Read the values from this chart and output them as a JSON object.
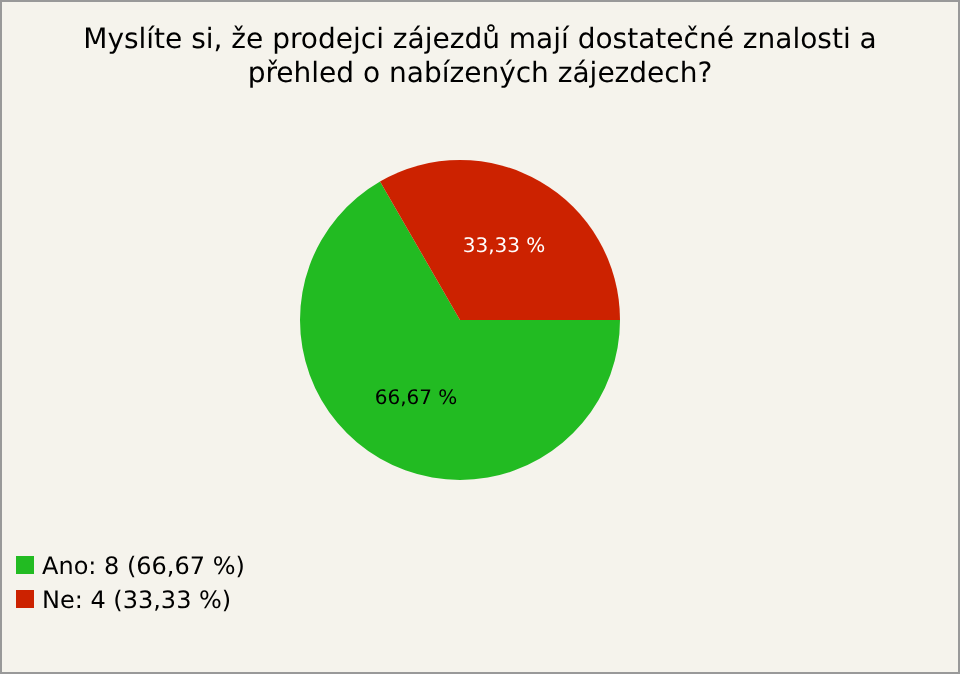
{
  "chart_data": {
    "type": "pie",
    "title": "Myslíte si, že prodejci zájezdů mají dostatečné znalosti a přehled o nabízených zájezdech?",
    "categories": [
      "Ano: 8 (66,67 %)",
      "Ne: 4 (33,33 %)"
    ],
    "values": [
      66.67,
      33.33
    ],
    "colors": [
      "#22bb22",
      "#cc2200"
    ],
    "value_labels": [
      "66,67 %",
      "33,33 %"
    ],
    "legend": "bottom left"
  }
}
